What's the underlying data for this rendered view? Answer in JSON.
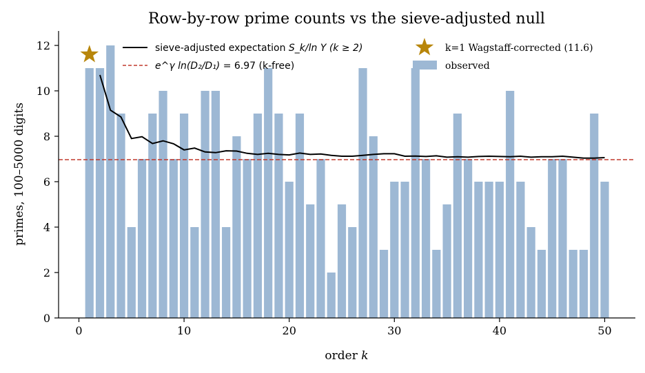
{
  "chart_data": {
    "type": "bar",
    "title": "Row-by-row prime counts vs the sieve-adjusted null",
    "xlabel_prefix": "order ",
    "xlabel_var": "k",
    "ylabel": "primes, 100–5000 digits",
    "xlim": [
      -2,
      53
    ],
    "ylim": [
      0,
      12.6
    ],
    "xticks": [
      0,
      10,
      20,
      30,
      40,
      50
    ],
    "yticks": [
      0,
      2,
      4,
      6,
      8,
      10,
      12
    ],
    "grid": false,
    "legend_placement": "top",
    "colors": {
      "bars": "#9db8d4",
      "expectation": "#000000",
      "kfree_line": "#c0392b",
      "star": "#b8860b"
    },
    "observed": {
      "name": "observed",
      "x": [
        1,
        2,
        3,
        4,
        5,
        6,
        7,
        8,
        9,
        10,
        11,
        12,
        13,
        14,
        15,
        16,
        17,
        18,
        19,
        20,
        21,
        22,
        23,
        24,
        25,
        26,
        27,
        28,
        29,
        30,
        31,
        32,
        33,
        34,
        35,
        36,
        37,
        38,
        39,
        40,
        41,
        42,
        43,
        44,
        45,
        46,
        47,
        48,
        49,
        50
      ],
      "values": [
        11,
        11,
        12,
        9,
        4,
        7,
        9,
        10,
        7,
        9,
        4,
        10,
        10,
        4,
        8,
        7,
        9,
        11,
        9,
        6,
        9,
        5,
        7,
        2,
        5,
        4,
        11,
        8,
        3,
        6,
        6,
        11,
        7,
        3,
        5,
        9,
        7,
        6,
        6,
        6,
        10,
        6,
        4,
        3,
        7,
        7,
        3,
        3,
        9,
        6
      ]
    },
    "expectation": {
      "name_main": "sieve-adjusted expectation ",
      "name_math": "S_k/ln Y (k ≥ 2)",
      "x": [
        2,
        3,
        4,
        5,
        6,
        7,
        8,
        9,
        10,
        11,
        12,
        13,
        14,
        15,
        16,
        17,
        18,
        19,
        20,
        21,
        22,
        23,
        24,
        25,
        26,
        27,
        28,
        29,
        30,
        31,
        32,
        33,
        34,
        35,
        36,
        37,
        38,
        39,
        40,
        41,
        42,
        43,
        44,
        45,
        46,
        47,
        48,
        49,
        50
      ],
      "y": [
        10.7,
        9.15,
        8.85,
        7.9,
        7.98,
        7.68,
        7.8,
        7.67,
        7.4,
        7.48,
        7.31,
        7.28,
        7.36,
        7.35,
        7.25,
        7.2,
        7.25,
        7.2,
        7.18,
        7.26,
        7.2,
        7.22,
        7.16,
        7.12,
        7.12,
        7.16,
        7.2,
        7.23,
        7.23,
        7.12,
        7.13,
        7.11,
        7.14,
        7.08,
        7.1,
        7.08,
        7.11,
        7.12,
        7.11,
        7.1,
        7.12,
        7.08,
        7.1,
        7.1,
        7.12,
        7.08,
        7.04,
        7.04,
        7.06
      ]
    },
    "kfree": {
      "name_math": "e^γ ln(D₂/D₁)",
      "name_rest": " = 6.97 (k-free)",
      "y": 6.97
    },
    "wagstaff": {
      "name": "k=1 Wagstaff-corrected (11.6)",
      "x": 1,
      "y": 11.6
    }
  }
}
